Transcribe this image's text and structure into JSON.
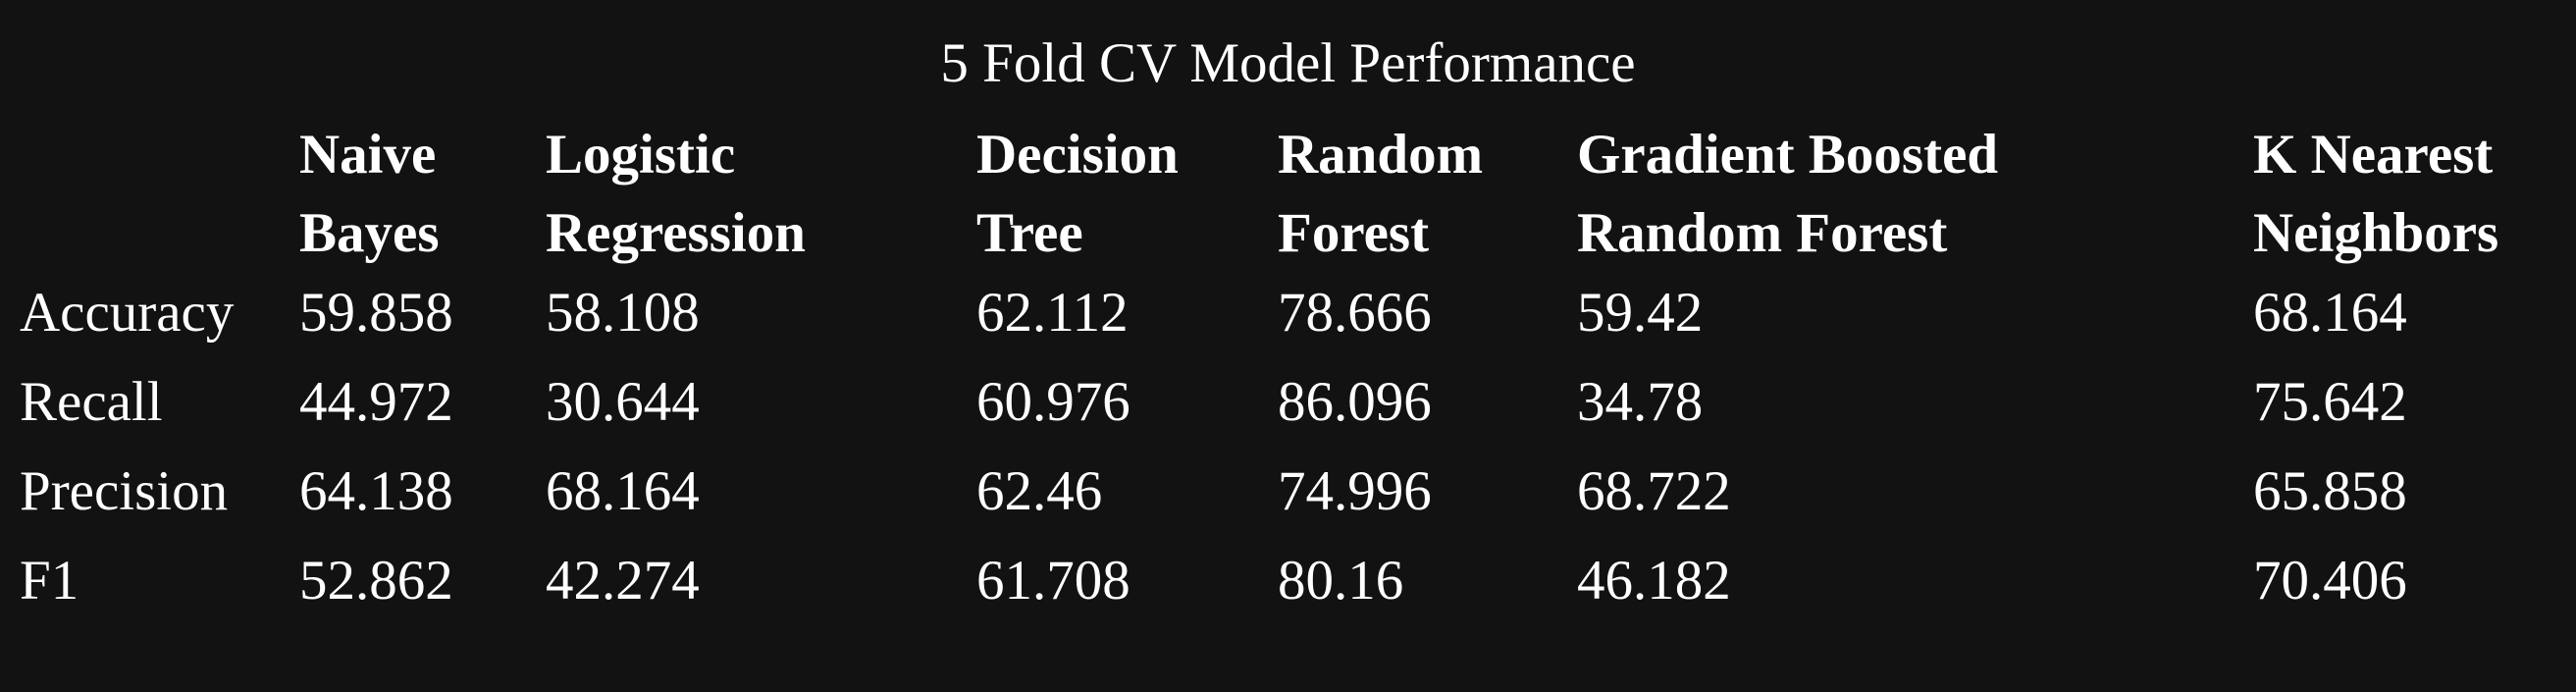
{
  "title": "5 Fold CV Model Performance",
  "table": {
    "columns": [
      {
        "line1": "Naive",
        "line2": "Bayes"
      },
      {
        "line1": "Logistic",
        "line2": "Regression"
      },
      {
        "line1": "Decision",
        "line2": "Tree"
      },
      {
        "line1": "Random",
        "line2": "Forest"
      },
      {
        "line1": "Gradient Boosted",
        "line2": "Random Forest"
      },
      {
        "line1": "K Nearest",
        "line2": "Neighbors"
      }
    ],
    "rows": [
      {
        "label": "Accuracy",
        "values": [
          "59.858",
          "58.108",
          "62.112",
          "78.666",
          "59.42",
          "68.164"
        ]
      },
      {
        "label": "Recall",
        "values": [
          "44.972",
          "30.644",
          "60.976",
          "86.096",
          "34.78",
          "75.642"
        ]
      },
      {
        "label": "Precision",
        "values": [
          "64.138",
          "68.164",
          "62.46",
          "74.996",
          "68.722",
          "65.858"
        ]
      },
      {
        "label": "F1",
        "values": [
          "52.862",
          "42.274",
          "61.708",
          "80.16",
          "46.182",
          "70.406"
        ]
      }
    ]
  }
}
